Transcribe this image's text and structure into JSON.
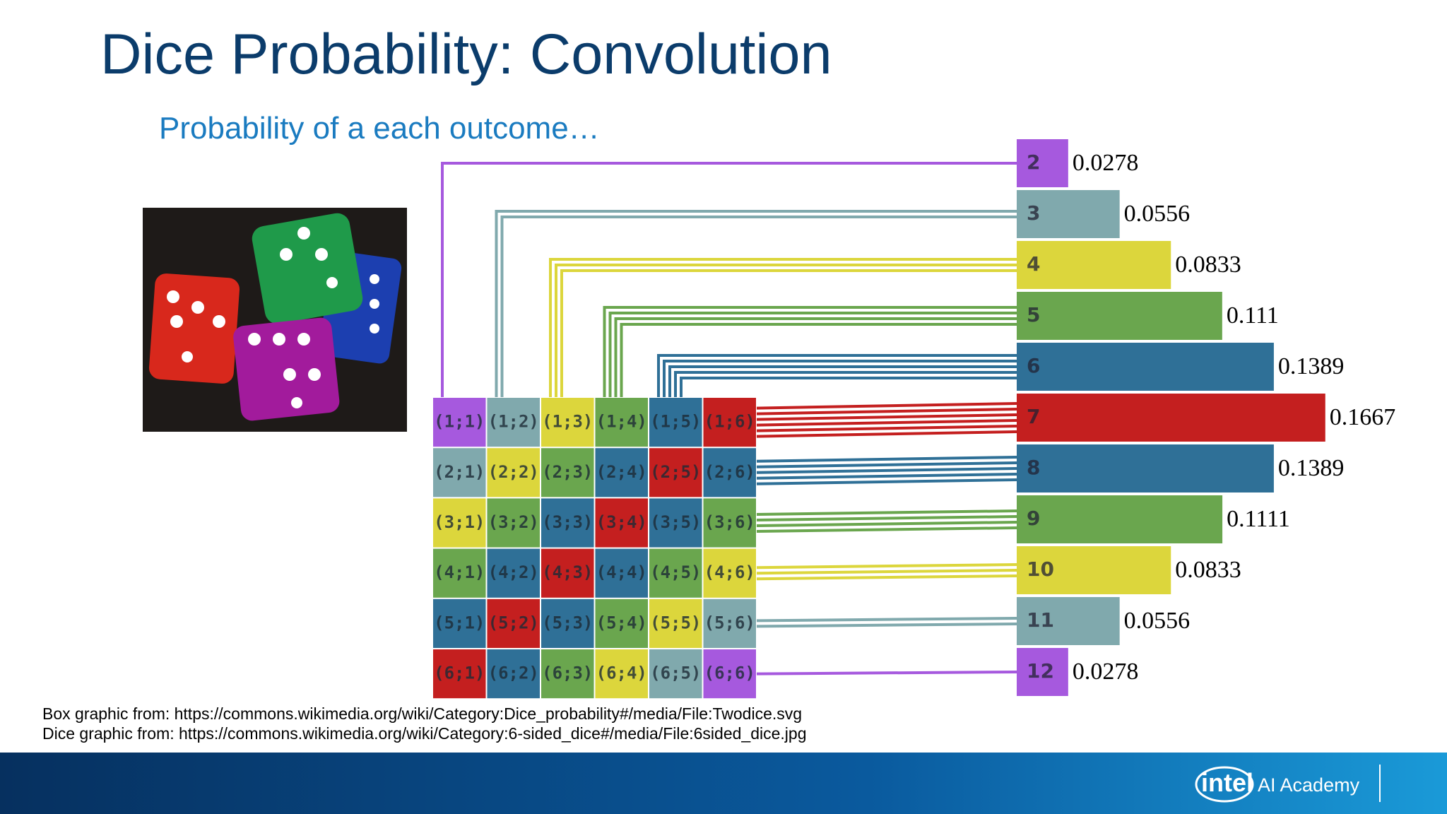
{
  "title": "Dice Probability: Convolution",
  "subtitle": "Probability of a each outcome…",
  "grid": {
    "rows": [
      [
        "(1;1)",
        "(1;2)",
        "(1;3)",
        "(1;4)",
        "(1;5)",
        "(1;6)"
      ],
      [
        "(2;1)",
        "(2;2)",
        "(2;3)",
        "(2;4)",
        "(2;5)",
        "(2;6)"
      ],
      [
        "(3;1)",
        "(3;2)",
        "(3;3)",
        "(3;4)",
        "(3;5)",
        "(3;6)"
      ],
      [
        "(4;1)",
        "(4;2)",
        "(4;3)",
        "(4;4)",
        "(4;5)",
        "(4;6)"
      ],
      [
        "(5;1)",
        "(5;2)",
        "(5;3)",
        "(5;4)",
        "(5;5)",
        "(5;6)"
      ],
      [
        "(6;1)",
        "(6;2)",
        "(6;3)",
        "(6;4)",
        "(6;5)",
        "(6;6)"
      ]
    ]
  },
  "bars": [
    {
      "label": "2",
      "value": 0.0278,
      "color": "#a659de"
    },
    {
      "label": "3",
      "value": 0.0556,
      "color": "#80a9ad"
    },
    {
      "label": "4",
      "value": 0.0833,
      "color": "#dcd63c"
    },
    {
      "label": "5",
      "value": 0.111,
      "color": "#6aa64e"
    },
    {
      "label": "6",
      "value": 0.1389,
      "color": "#2f7097"
    },
    {
      "label": "7",
      "value": 0.1667,
      "color": "#c41f1f"
    },
    {
      "label": "8",
      "value": 0.1389,
      "color": "#2f7097"
    },
    {
      "label": "9",
      "value": 0.1111,
      "color": "#6aa64e"
    },
    {
      "label": "10",
      "value": 0.0833,
      "color": "#dcd63c"
    },
    {
      "label": "11",
      "value": 0.0556,
      "color": "#80a9ad"
    },
    {
      "label": "12",
      "value": 0.0278,
      "color": "#a659de"
    }
  ],
  "footnotes": [
    "Box graphic from: https://commons.wikimedia.org/wiki/Category:Dice_probability#/media/File:Twodice.svg",
    "Dice graphic from: https://commons.wikimedia.org/wiki/Category:6-sided_dice#/media/File:6sided_dice.jpg"
  ],
  "logo": {
    "brand": "intel",
    "product": "AI Academy"
  }
}
